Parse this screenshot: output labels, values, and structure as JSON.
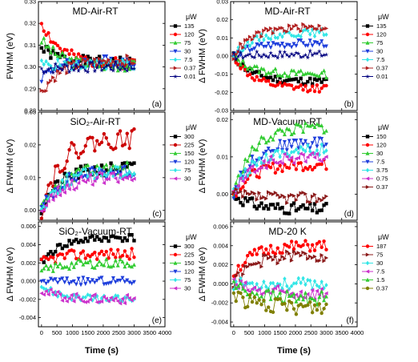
{
  "page": {
    "x_axis_label": "Time (s)",
    "legend_unit": "μW"
  },
  "chart_data": [
    {
      "type": "line",
      "title": "MD-Air-RT",
      "panel_label": "(a)",
      "ylabel": "FWHM (eV)",
      "xlim": [
        -100,
        4000
      ],
      "ylim": [
        0.28,
        0.33
      ],
      "xticks": [
        "0",
        "500",
        "1000",
        "1500",
        "2000",
        "2500",
        "3000",
        "3500",
        "4000"
      ],
      "yticks": [
        "0.28",
        "0.29",
        "0.30",
        "0.31",
        "0.32",
        "0.33"
      ],
      "series": [
        {
          "name": "135",
          "color": "#000000",
          "marker": "square",
          "start": 0.3085,
          "end": 0.302,
          "noise": 0.0025,
          "seed": 1
        },
        {
          "name": "120",
          "color": "#ff0000",
          "marker": "circle",
          "start": 0.3205,
          "end": 0.3015,
          "noise": 0.0025,
          "seed": 2
        },
        {
          "name": "75",
          "color": "#33cc33",
          "marker": "triangle",
          "start": 0.3125,
          "end": 0.3005,
          "noise": 0.0025,
          "seed": 3
        },
        {
          "name": "30",
          "color": "#1f3fdc",
          "marker": "triangle-down",
          "start": 0.2955,
          "end": 0.303,
          "noise": 0.0025,
          "seed": 4
        },
        {
          "name": "7.5",
          "color": "#33e6e6",
          "marker": "diamond",
          "start": 0.301,
          "end": 0.301,
          "noise": 0.0025,
          "seed": 5
        },
        {
          "name": "0.37",
          "color": "#b22222",
          "marker": "triangle-right",
          "start": 0.288,
          "end": 0.303,
          "noise": 0.0025,
          "seed": 6
        },
        {
          "name": "0.01",
          "color": "#000080",
          "marker": "star",
          "start": 0.299,
          "end": 0.3,
          "noise": 0.0025,
          "seed": 7
        }
      ]
    },
    {
      "type": "line",
      "title": "MD-Air-RT",
      "panel_label": "(b)",
      "ylabel": "Δ FWHM (eV)",
      "xlim": [
        -100,
        4000
      ],
      "ylim": [
        -0.03,
        0.03
      ],
      "xticks": [
        "0",
        "500",
        "1000",
        "1500",
        "2000",
        "2500",
        "3000",
        "3500",
        "4000"
      ],
      "yticks": [
        "-0.03",
        "-0.02",
        "-0.01",
        "0.00",
        "0.01",
        "0.02",
        "0.03"
      ],
      "series": [
        {
          "name": "135",
          "color": "#000000",
          "marker": "square",
          "start": 0.0,
          "end": -0.014,
          "noise": 0.002,
          "seed": 11
        },
        {
          "name": "120",
          "color": "#ff0000",
          "marker": "circle",
          "start": 0.0,
          "end": -0.018,
          "noise": 0.002,
          "seed": 12
        },
        {
          "name": "75",
          "color": "#33cc33",
          "marker": "triangle",
          "start": 0.0,
          "end": -0.01,
          "noise": 0.002,
          "seed": 13
        },
        {
          "name": "30",
          "color": "#1f3fdc",
          "marker": "triangle-down",
          "start": 0.0,
          "end": 0.007,
          "noise": 0.002,
          "seed": 14
        },
        {
          "name": "7.5",
          "color": "#33e6e6",
          "marker": "diamond",
          "start": 0.0,
          "end": 0.013,
          "noise": 0.002,
          "seed": 15
        },
        {
          "name": "0.37",
          "color": "#b22222",
          "marker": "triangle-right",
          "start": 0.0,
          "end": 0.016,
          "noise": 0.002,
          "seed": 16
        },
        {
          "name": "0.01",
          "color": "#000080",
          "marker": "star",
          "start": 0.0,
          "end": 0.001,
          "noise": 0.002,
          "seed": 17
        }
      ]
    },
    {
      "type": "line",
      "title": "SiO₂-Air-RT",
      "panel_label": "(c)",
      "ylabel": "Δ FWHM (eV)",
      "xlim": [
        -100,
        4000
      ],
      "ylim": [
        -0.003,
        0.03
      ],
      "xticks": [
        "0",
        "500",
        "1000",
        "1500",
        "2000",
        "2500",
        "3000",
        "3500",
        "4000"
      ],
      "yticks": [
        "0.00",
        "0.01",
        "0.02",
        "0.03"
      ],
      "series": [
        {
          "name": "300",
          "color": "#000000",
          "marker": "square",
          "start": 0.0,
          "end": 0.013,
          "noise": 0.002,
          "seed": 21
        },
        {
          "name": "225",
          "color": "#cc0000",
          "marker": "circle",
          "start": 0.0,
          "end": 0.022,
          "noise": 0.003,
          "seed": 22
        },
        {
          "name": "150",
          "color": "#33cc33",
          "marker": "triangle",
          "start": 0.0,
          "end": 0.013,
          "noise": 0.002,
          "seed": 23
        },
        {
          "name": "120",
          "color": "#1f3fdc",
          "marker": "triangle-down",
          "start": 0.0,
          "end": 0.012,
          "noise": 0.002,
          "seed": 24
        },
        {
          "name": "75",
          "color": "#33e6e6",
          "marker": "diamond",
          "start": 0.0,
          "end": 0.012,
          "noise": 0.002,
          "seed": 25
        },
        {
          "name": "30",
          "color": "#cc33cc",
          "marker": "triangle-left",
          "start": 0.0,
          "end": 0.01,
          "noise": 0.002,
          "seed": 26
        }
      ]
    },
    {
      "type": "line",
      "title": "MD-Vacuum-RT",
      "panel_label": "(d)",
      "ylabel": "Δ FWHM (eV)",
      "xlim": [
        -100,
        4000
      ],
      "ylim": [
        -0.007,
        0.022
      ],
      "xticks": [
        "0",
        "500",
        "1000",
        "1500",
        "2000",
        "2500",
        "3000",
        "3500",
        "4000"
      ],
      "yticks": [
        "0.00",
        "0.01",
        "0.02"
      ],
      "series": [
        {
          "name": "150",
          "color": "#000000",
          "marker": "square",
          "start": 0.0,
          "end": -0.004,
          "noise": 0.0015,
          "seed": 31
        },
        {
          "name": "120",
          "color": "#ff0000",
          "marker": "circle",
          "start": 0.0,
          "end": 0.008,
          "noise": 0.0015,
          "seed": 32
        },
        {
          "name": "30",
          "color": "#33cc33",
          "marker": "triangle",
          "start": 0.0,
          "end": 0.018,
          "noise": 0.0015,
          "seed": 33
        },
        {
          "name": "7.5",
          "color": "#1f3fdc",
          "marker": "triangle-down",
          "start": 0.0,
          "end": 0.014,
          "noise": 0.0015,
          "seed": 34
        },
        {
          "name": "3.75",
          "color": "#33e6e6",
          "marker": "diamond",
          "start": 0.0,
          "end": 0.012,
          "noise": 0.0015,
          "seed": 35
        },
        {
          "name": "0.75",
          "color": "#cc33cc",
          "marker": "triangle-left",
          "start": 0.0,
          "end": 0.01,
          "noise": 0.0015,
          "seed": 36
        },
        {
          "name": "0.37",
          "color": "#8b1a1a",
          "marker": "triangle-right",
          "start": 0.0,
          "end": -0.001,
          "noise": 0.0015,
          "seed": 37
        }
      ]
    },
    {
      "type": "line",
      "title": "SiO₂-Vacuum-RT",
      "panel_label": "(e)",
      "ylabel": "Δ FWHM (eV)",
      "xlim": [
        -100,
        4000
      ],
      "ylim": [
        -0.005,
        0.0065
      ],
      "xticks": [
        "0",
        "500",
        "1000",
        "1500",
        "2000",
        "2500",
        "3000",
        "3500",
        "4000"
      ],
      "yticks": [
        "-0.004",
        "-0.002",
        "0.000",
        "0.002",
        "0.004",
        "0.006"
      ],
      "series": [
        {
          "name": "300",
          "color": "#000000",
          "marker": "square",
          "start": 0.002,
          "end": 0.0048,
          "noise": 0.0004,
          "seed": 41
        },
        {
          "name": "225",
          "color": "#ff0000",
          "marker": "circle",
          "start": 0.002,
          "end": 0.003,
          "noise": 0.0006,
          "seed": 42
        },
        {
          "name": "150",
          "color": "#33cc33",
          "marker": "triangle",
          "start": 0.001,
          "end": 0.002,
          "noise": 0.0005,
          "seed": 43
        },
        {
          "name": "120",
          "color": "#1f3fdc",
          "marker": "triangle-down",
          "start": 0.0,
          "end": 0.0,
          "noise": 0.0004,
          "seed": 44
        },
        {
          "name": "75",
          "color": "#33e6e6",
          "marker": "diamond",
          "start": -0.0005,
          "end": -0.002,
          "noise": 0.0004,
          "seed": 45
        },
        {
          "name": "30",
          "color": "#cc33cc",
          "marker": "triangle-left",
          "start": -0.001,
          "end": -0.002,
          "noise": 0.0005,
          "seed": 46
        }
      ]
    },
    {
      "type": "line",
      "title": "MD-20 K",
      "panel_label": "(f)",
      "ylabel": "Δ FWHM (eV)",
      "xlim": [
        -100,
        4000
      ],
      "ylim": [
        -0.0045,
        0.0065
      ],
      "xticks": [
        "0",
        "500",
        "1000",
        "1500",
        "2000",
        "2500",
        "3000",
        "3500",
        "4000"
      ],
      "yticks": [
        "-0.004",
        "-0.002",
        "0.000",
        "0.002",
        "0.004",
        "0.006"
      ],
      "series": [
        {
          "name": "187",
          "color": "#ff0000",
          "marker": "circle",
          "start": 0.001,
          "end": 0.004,
          "noise": 0.0006,
          "seed": 51
        },
        {
          "name": "75",
          "color": "#8b1a1a",
          "marker": "triangle-right",
          "start": 0.0,
          "end": 0.003,
          "noise": 0.0006,
          "seed": 52
        },
        {
          "name": "30",
          "color": "#33e6e6",
          "marker": "diamond",
          "start": 0.0,
          "end": 0.0,
          "noise": 0.0006,
          "seed": 53
        },
        {
          "name": "7.5",
          "color": "#cc33cc",
          "marker": "triangle-left",
          "start": 0.0,
          "end": -0.001,
          "noise": 0.0007,
          "seed": 54
        },
        {
          "name": "1.5",
          "color": "#33cc33",
          "marker": "triangle",
          "start": 0.0,
          "end": -0.0015,
          "noise": 0.0007,
          "seed": 55
        },
        {
          "name": "0.37",
          "color": "#808000",
          "marker": "circle",
          "start": -0.001,
          "end": -0.0025,
          "noise": 0.0008,
          "seed": 56
        }
      ]
    }
  ]
}
